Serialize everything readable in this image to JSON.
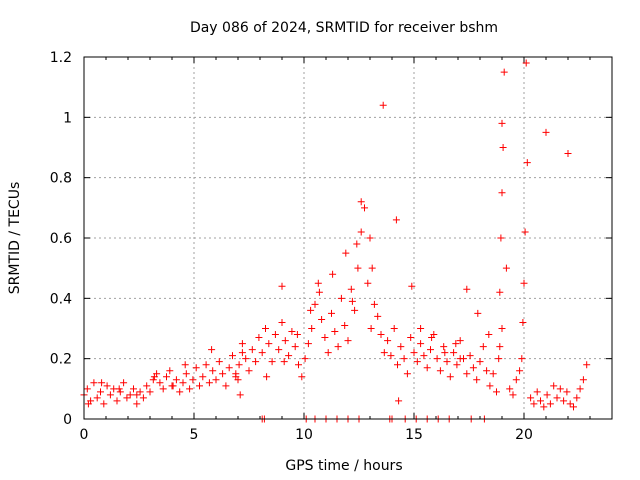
{
  "chart_data": {
    "type": "scatter",
    "title": "Day 086 of 2024, SRMTID for receiver bshm",
    "xlabel": "GPS time / hours",
    "ylabel": "SRMTID / TECUs",
    "xlim": [
      0,
      24
    ],
    "ylim": [
      0,
      1.2
    ],
    "xticks": [
      0,
      5,
      10,
      15,
      20
    ],
    "xtick_labels": [
      "0",
      "5",
      "10",
      "15",
      "20"
    ],
    "yticks": [
      0,
      0.2,
      0.4,
      0.6,
      0.8,
      1.0,
      1.2
    ],
    "ytick_labels": [
      "0",
      "0.2",
      "0.4",
      "0.6",
      "0.8",
      "1",
      "1.2"
    ],
    "grid": true,
    "marker": "+",
    "series": [
      {
        "name": "SRMTID",
        "color": "#ff0000",
        "x": [
          0.0,
          0.15,
          0.3,
          0.45,
          0.6,
          0.75,
          0.9,
          1.05,
          1.2,
          1.35,
          1.5,
          1.65,
          1.8,
          1.95,
          2.1,
          2.25,
          2.4,
          2.55,
          2.7,
          2.85,
          3.0,
          3.15,
          3.3,
          3.45,
          3.6,
          3.75,
          3.9,
          4.05,
          4.2,
          4.35,
          4.5,
          4.65,
          4.8,
          4.95,
          5.1,
          5.25,
          5.4,
          5.55,
          5.7,
          5.85,
          6.0,
          6.15,
          6.3,
          6.45,
          6.6,
          6.75,
          6.9,
          7.05,
          7.2,
          7.35,
          7.5,
          7.65,
          7.8,
          7.95,
          8.1,
          8.25,
          8.4,
          8.55,
          8.7,
          8.85,
          9.0,
          9.15,
          9.3,
          9.45,
          9.6,
          9.75,
          9.9,
          10.05,
          10.2,
          10.35,
          10.5,
          10.65,
          10.8,
          10.95,
          11.1,
          11.25,
          11.4,
          11.55,
          11.7,
          11.85,
          12.0,
          12.15,
          12.3,
          12.45,
          12.6,
          12.75,
          12.9,
          13.05,
          13.2,
          13.35,
          13.5,
          13.65,
          13.8,
          13.95,
          14.1,
          14.25,
          14.4,
          14.55,
          14.7,
          14.85,
          15.0,
          15.15,
          15.3,
          15.45,
          15.6,
          15.75,
          15.9,
          16.05,
          16.2,
          16.35,
          16.5,
          16.65,
          16.8,
          16.95,
          17.1,
          17.25,
          17.4,
          17.55,
          17.7,
          17.85,
          18.0,
          18.15,
          18.3,
          18.45,
          18.6,
          18.75,
          18.85,
          18.9,
          18.95,
          19.0,
          19.05,
          19.1,
          19.2,
          19.35,
          19.5,
          19.65,
          19.8,
          19.9,
          19.95,
          20.0,
          20.05,
          20.15,
          20.3,
          20.45,
          20.6,
          20.75,
          20.9,
          21.05,
          21.2,
          21.35,
          21.5,
          21.65,
          21.8,
          21.95,
          22.1,
          22.25,
          22.4,
          22.55,
          22.7,
          22.85,
          0.2,
          0.8,
          1.6,
          2.4,
          3.2,
          4.0,
          4.6,
          5.8,
          6.9,
          7.2,
          8.3,
          9.1,
          9.7,
          10.3,
          10.7,
          11.3,
          11.9,
          12.2,
          12.4,
          12.6,
          13.0,
          13.1,
          13.6,
          14.2,
          14.9,
          15.3,
          15.8,
          16.4,
          16.9,
          17.1,
          17.4,
          17.9,
          18.4,
          18.9,
          19.0,
          19.0,
          20.1,
          21.0,
          22.0,
          7.0,
          7.1,
          8.1,
          8.2,
          9.0,
          10.1,
          10.5,
          11.0,
          11.5,
          12.0,
          12.5,
          13.9,
          14.0,
          14.3,
          14.6,
          15.1,
          15.6,
          16.1,
          16.6,
          17.6,
          18.2
        ],
        "y": [
          0.08,
          0.1,
          0.06,
          0.12,
          0.07,
          0.09,
          0.05,
          0.11,
          0.08,
          0.1,
          0.06,
          0.09,
          0.12,
          0.07,
          0.08,
          0.1,
          0.05,
          0.09,
          0.07,
          0.11,
          0.09,
          0.13,
          0.15,
          0.12,
          0.1,
          0.14,
          0.16,
          0.11,
          0.13,
          0.09,
          0.12,
          0.15,
          0.1,
          0.13,
          0.17,
          0.11,
          0.14,
          0.18,
          0.12,
          0.16,
          0.13,
          0.19,
          0.15,
          0.11,
          0.17,
          0.21,
          0.14,
          0.18,
          0.25,
          0.2,
          0.16,
          0.23,
          0.19,
          0.27,
          0.22,
          0.3,
          0.25,
          0.19,
          0.28,
          0.23,
          0.32,
          0.26,
          0.21,
          0.29,
          0.24,
          0.18,
          0.14,
          0.2,
          0.25,
          0.3,
          0.38,
          0.45,
          0.33,
          0.27,
          0.22,
          0.35,
          0.29,
          0.24,
          0.4,
          0.31,
          0.26,
          0.43,
          0.36,
          0.5,
          0.62,
          0.7,
          0.45,
          0.3,
          0.38,
          0.34,
          0.28,
          0.22,
          0.26,
          0.21,
          0.3,
          0.18,
          0.24,
          0.2,
          0.15,
          0.27,
          0.22,
          0.19,
          0.25,
          0.21,
          0.17,
          0.23,
          0.28,
          0.2,
          0.16,
          0.24,
          0.19,
          0.14,
          0.22,
          0.18,
          0.26,
          0.2,
          0.15,
          0.21,
          0.17,
          0.13,
          0.19,
          0.24,
          0.16,
          0.11,
          0.15,
          0.09,
          0.2,
          0.42,
          0.6,
          0.75,
          0.9,
          1.15,
          0.5,
          0.1,
          0.08,
          0.13,
          0.16,
          0.2,
          0.32,
          0.45,
          0.62,
          0.85,
          0.07,
          0.05,
          0.09,
          0.06,
          0.04,
          0.08,
          0.05,
          0.11,
          0.07,
          0.1,
          0.06,
          0.09,
          0.05,
          0.04,
          0.07,
          0.1,
          0.13,
          0.18,
          0.05,
          0.12,
          0.1,
          0.08,
          0.14,
          0.11,
          0.18,
          0.23,
          0.15,
          0.22,
          0.14,
          0.19,
          0.28,
          0.36,
          0.42,
          0.48,
          0.55,
          0.39,
          0.58,
          0.72,
          0.6,
          0.5,
          1.04,
          0.66,
          0.44,
          0.3,
          0.27,
          0.22,
          0.25,
          0.2,
          0.43,
          0.35,
          0.28,
          0.24,
          0.3,
          0.98,
          1.18,
          0.95,
          0.88,
          0.13,
          0.08,
          0.0,
          0.0,
          0.44,
          0.0,
          0.0,
          0.0,
          0.0,
          0.0,
          0.0,
          0.0,
          0.0,
          0.06,
          0.0,
          0.0,
          0.0,
          0.0,
          0.0,
          0.0,
          0.0
        ]
      }
    ]
  }
}
